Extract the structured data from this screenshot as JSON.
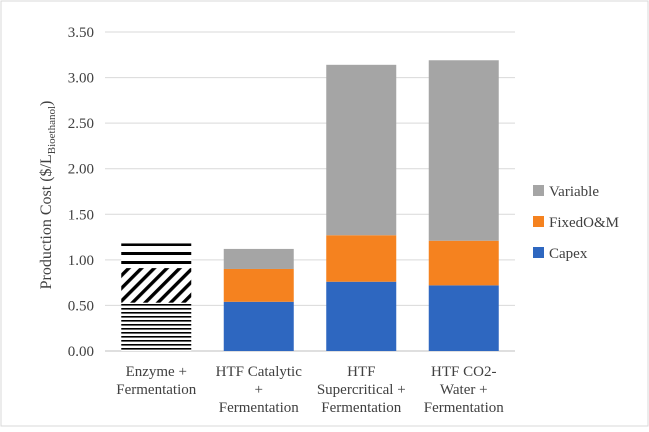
{
  "chart_data": {
    "type": "bar",
    "stacked": true,
    "title": "",
    "ylabel_main": "Production Cost ($/L",
    "ylabel_sub": "Bioethanol",
    "ylabel_end": ")",
    "ylim": [
      0,
      3.5
    ],
    "yticks": [
      "0.00",
      "0.50",
      "1.00",
      "1.50",
      "2.00",
      "2.50",
      "3.00",
      "3.50"
    ],
    "grid": true,
    "legend_position": "right",
    "categories": [
      [
        "Enzyme +",
        "Fermentation"
      ],
      [
        "HTF Catalytic",
        "+",
        "Fermentation"
      ],
      [
        "HTF",
        "Supercritical +",
        "Fermentation"
      ],
      [
        "HTF CO2-",
        "Water +",
        "Fermentation"
      ]
    ],
    "series": [
      {
        "name": "Capex",
        "color": "#2e67c0",
        "values": [
          0.53,
          0.54,
          0.76,
          0.72
        ]
      },
      {
        "name": "FixedO&M",
        "color": "#f5821f",
        "values": [
          0.38,
          0.36,
          0.51,
          0.49
        ]
      },
      {
        "name": "Variable",
        "color": "#a5a5a5",
        "values": [
          0.27,
          0.22,
          1.87,
          1.98
        ]
      }
    ],
    "legend_order": [
      2,
      1,
      0
    ],
    "pattern_first_category": true
  }
}
